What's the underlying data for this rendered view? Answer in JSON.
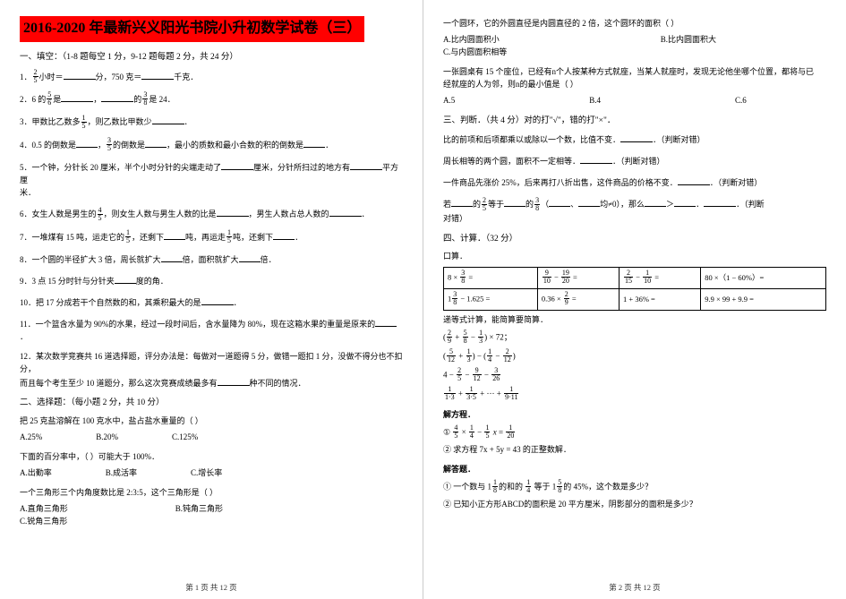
{
  "title": "2016-2020 年最新兴义阳光书院小升初数学试卷（三）",
  "left": {
    "sec1": "一、填空：（1-8 题每空 1 分，9-12 题每题 2 分，共 24 分）",
    "q1a": "小时＝",
    "q1b": "分，750 克＝",
    "q1c": "千克．",
    "q2a": "2．6 的",
    "q2b": "是",
    "q2c": "，",
    "q2d": "的",
    "q2e": "是 24．",
    "q3": "3．甲数比乙数多",
    "q3b": "，则乙数比甲数少",
    "q4a": "4．0.5 的倒数是",
    "q4b": "，",
    "q4c": "的倒数是",
    "q4d": "，最小的质数和最小合数的积的倒数是",
    "q5a": "5．一个钟，分针长 20 厘米，半个小时分针的尖端走动了",
    "q5b": "厘米，分针所扫过的地方有",
    "q5c": "平方厘",
    "q5d": "米．",
    "q6a": "6．女生人数是男生的",
    "q6b": "，则女生人数与男生人数的比是",
    "q6c": "，男生人数占总人数的",
    "q7a": "7．一堆煤有 15 吨，运走它的",
    "q7b": "，还剩下",
    "q7c": "吨，再运走",
    "q7d": "吨，还剩下",
    "q8a": "8．一个圆的半径扩大 3 倍，周长就扩大",
    "q8b": "倍，面积就扩大",
    "q8c": "倍．",
    "q9a": "9．3 点 15 分时针与分针夹",
    "q9b": "度的角．",
    "q10a": "10．把 17 分成若干个自然数的和，其乘积最大的是",
    "q11a": "11．一个篮含水量为 90%的水果，经过一段时间后，含水量降为 80%，现在这箱水果的重量是原来的",
    "q12a": "12．某次数学竞赛共 16 道选择题，评分办法是：每做对一道题得 5 分，做错一题扣 1 分，没做不得分也不扣分，",
    "q12b": "而且每个考生至少 10 道题分，那么这次竞赛成绩最多有",
    "q12c": "种不同的情况．",
    "sec2": "二、选择题：（每小题 2 分，共 10 分）",
    "mc1": "把 25 克盐溶解在 100 克水中，盐占盐水重量的（ ）",
    "mc1a": "A.25%",
    "mc1b": "B.20%",
    "mc1c": "C.125%",
    "mc2": "下面的百分率中，（ ）可能大于 100%．",
    "mc2a": "A.出勤率",
    "mc2b": "B.成活率",
    "mc2c": "C.增长率",
    "mc3": "一个三角形三个内角度数比是 2:3:5，这个三角形是（ ）",
    "mc3a": "A.直角三角形",
    "mc3b": "B.钝角三角形",
    "mc3c": "C.锐角三角形",
    "footer": "第 1 页 共 12 页"
  },
  "right": {
    "mc4": "一个圆环，它的外圆直径是内圆直径的 2 倍，这个圆环的面积（ ）",
    "mc4a": "A.比内圆面积小",
    "mc4b": "B.比内圆面积大",
    "mc4c": "C.与内圆面积相等",
    "mc5a": "一张圆桌有 15 个座位，已经有n个人按某种方式就座，当某人就座时，发现无论他坐哪个位置，都将与已",
    "mc5b": "经就座的人为邻，则n的最小值是（ ）",
    "mc5o1": "A.5",
    "mc5o2": "B.4",
    "mc5o3": "C.6",
    "sec3": "三、判断．（共 4 分）对的打\"√\"，错的打\"×\"．",
    "j1": "比的前项和后项都乘以或除以一个数，比值不变．",
    "j1t": "．（判断对错）",
    "j2": "周长相等的两个圆，面积不一定相等．",
    "j2t": "．（判断对错）",
    "j3": "一件商品先涨价 25%，后来再打八折出售，这件商品的价格不变．",
    "j3t": "．（判断对错）",
    "j4a": "若",
    "j4b": "的",
    "j4c": "等于",
    "j4d": "的",
    "j4e": "（",
    "j4f": "、",
    "j4g": "均≠0），那么",
    "j4h": "＞",
    "j4t": "．（判断",
    "j4i": "对错）",
    "sec4": "四、计算．（32 分）",
    "calc_head": "口算．",
    "t11": "8 × ",
    "t12": "9/10 − 19/20 =",
    "t13": "2/15 − 1/10 =",
    "t14": "80 ×（1 − 60%）=",
    "t21": "1 3/8 − 1.625 =",
    "t22": "0.36 × 2/9 =",
    "t23": "1 + 36% =",
    "t24": "9.9 × 99 + 9.9 =",
    "step_head": "递等式计算，能简算要简算．",
    "s1": "( 2/9 + 5/8 − 1/3 ) × 72；",
    "s2": "( 5/12 + 1/3 ) − ( 1/4 − 2/12 )",
    "s3": "4 − 2/5 − 9/12 − 3/26",
    "s4": "1/1·3 + 1/3·5 + ··· + 1/9·11",
    "eq_head": "解方程．",
    "eq1": "① 4/5 × 1/4 − 1/5 x = 1/20",
    "eq2": "② 求方程 7x + 5y = 43 的正整数解．",
    "ans_head": "解答题．",
    "a1": "① 一个数与 1 1/8 的和的 1/4 等于 1 5/8 的 45%，这个数是多少？",
    "a2": "② 已知小正方形ABCD的面积是 20 平方厘米，阴影部分的面积是多少？",
    "footer": "第 2 页 共 12 页"
  }
}
